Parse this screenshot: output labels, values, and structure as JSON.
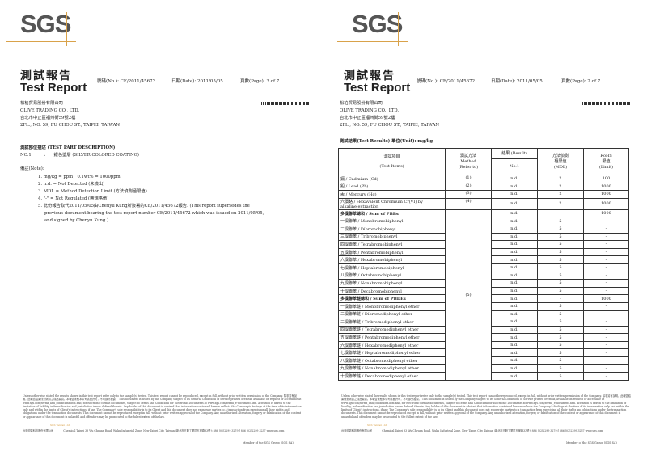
{
  "logo": "SGS",
  "report_title_cn": "測試報告",
  "report_title_en": "Test Report",
  "report_no": "號碼(No.): CE/2011/45672",
  "date": "日期(Date): 2011/05/05",
  "client": {
    "name_cn": "松柏貿易股份有限公司",
    "name_en": "OLIVE TRADING CO., LTD.",
    "addr_cn": "台北市中正區福州街59號2樓",
    "addr_en": "2FL., NO. 59, FU CHOU ST., TAIPEI, TAIWAN"
  },
  "page1": {
    "page": "頁數(Page): 3 of 7",
    "part_heading": "測試部位描述 (TEST PART DESCRIPTION):",
    "part_no": "NO.1",
    "part_sep": ":",
    "part_desc": "銀色塗層 (SILVER COLORED COATING)",
    "note_heading": "備註(Note):",
    "notes": [
      "1. mg/kg = ppm；0.1wt% = 1000ppm",
      "2. n.d. = Not Detected (未檢出)",
      "3. MDL = Method Detection Limit (方法偵測極限值)",
      "4. \"-\" = Not Regulated (無規格值)",
      "5. 此份報告取代2011/05/05由Chenyu Kung所簽署的CE/2011/45672報告. (This report supersedes the",
      "previous document bearing the test report number CE/2011/45672 which was issued on 2011/05/05,",
      "and signed by Chenyu Kung.)"
    ]
  },
  "page2": {
    "page": "頁數(Page): 2 of 7",
    "results_heading": "測試結果(Test Results) 單位(Unit): mg/kg",
    "table": {
      "headers": {
        "item_cn": "測試項目",
        "item_en": "(Test Items)",
        "method_cn": "測試方法",
        "method_en": "Method",
        "method_ref": "(Refer to)",
        "result": "結果 (Result)",
        "result_no": "No.1",
        "mdl_cn": "方法偵測",
        "mdl_cn2": "極限值",
        "mdl_en": "(MDL)",
        "limit_en": "RoHS",
        "limit_cn": "限值",
        "limit_sub": "(Limit)"
      },
      "merged_method": "(5)",
      "rows": [
        {
          "item": "鎘 / Cadmium (Cd)",
          "method": "(1)",
          "result": "n.d.",
          "mdl": "2",
          "limit": "100"
        },
        {
          "item": "鉛 / Lead (Pb)",
          "method": "(2)",
          "result": "n.d.",
          "mdl": "2",
          "limit": "1000"
        },
        {
          "item": "汞 / Mercury (Hg)",
          "method": "(3)",
          "result": "n.d.",
          "mdl": "2",
          "limit": "1000"
        },
        {
          "item": "六價鉻 / Hexavalent Chromium Cr(VI) by",
          "item2": "alkaline extraction",
          "method": "(4)",
          "result": "n.d.",
          "mdl": "2",
          "limit": "1000"
        },
        {
          "item": "多溴聯苯總和 / Sum of PBBs",
          "result": "n.d.",
          "mdl": "-",
          "limit": "1000",
          "sum": true
        },
        {
          "item": "一溴聯苯 / Monobromobiphenyl",
          "result": "n.d.",
          "mdl": "5",
          "limit": "-"
        },
        {
          "item": "二溴聯苯 / Dibromobiphenyl",
          "result": "n.d.",
          "mdl": "5",
          "limit": "-"
        },
        {
          "item": "三溴聯苯 / Tribromobiphenyl",
          "result": "n.d.",
          "mdl": "5",
          "limit": "-"
        },
        {
          "item": "四溴聯苯 / Tetrabromobiphenyl",
          "result": "n.d.",
          "mdl": "5",
          "limit": "-"
        },
        {
          "item": "五溴聯苯 / Pentabromobiphenyl",
          "result": "n.d.",
          "mdl": "5",
          "limit": "-"
        },
        {
          "item": "六溴聯苯 / Hexabromobiphenyl",
          "result": "n.d.",
          "mdl": "5",
          "limit": "-"
        },
        {
          "item": "七溴聯苯 / Heptabromobiphenyl",
          "result": "n.d.",
          "mdl": "5",
          "limit": "-"
        },
        {
          "item": "八溴聯苯 / Octabromobiphenyl",
          "result": "n.d.",
          "mdl": "5",
          "limit": "-"
        },
        {
          "item": "九溴聯苯 / Nonabromobiphenyl",
          "result": "n.d.",
          "mdl": "5",
          "limit": "-"
        },
        {
          "item": "十溴聯苯 / Decabromobiphenyl",
          "result": "n.d.",
          "mdl": "5",
          "limit": "-"
        },
        {
          "item": "多溴聯苯醚總和 / Sum of PBDEs",
          "result": "n.d.",
          "mdl": "-",
          "limit": "1000",
          "sum": true
        },
        {
          "item": "一溴聯苯醚 / Monobromodiphenyl ether",
          "result": "n.d.",
          "mdl": "5",
          "limit": "-"
        },
        {
          "item": "二溴聯苯醚 / Dibromodiphenyl ether",
          "result": "n.d.",
          "mdl": "5",
          "limit": "-"
        },
        {
          "item": "三溴聯苯醚 / Tribromodiphenyl ether",
          "result": "n.d.",
          "mdl": "5",
          "limit": "-"
        },
        {
          "item": "四溴聯苯醚 / Tetrabromodiphenyl ether",
          "result": "n.d.",
          "mdl": "5",
          "limit": "-"
        },
        {
          "item": "五溴聯苯醚 / Pentabromodiphenyl ether",
          "result": "n.d.",
          "mdl": "5",
          "limit": "-"
        },
        {
          "item": "六溴聯苯醚 / Hexabromodiphenyl ether",
          "result": "n.d.",
          "mdl": "5",
          "limit": "-"
        },
        {
          "item": "七溴聯苯醚 / Heptabromodiphenyl ether",
          "result": "n.d.",
          "mdl": "5",
          "limit": "-"
        },
        {
          "item": "八溴聯苯醚 / Octabromodiphenyl ether",
          "result": "n.d.",
          "mdl": "5",
          "limit": "-"
        },
        {
          "item": "九溴聯苯醚 / Nonabromodiphenyl ether",
          "result": "n.d.",
          "mdl": "5",
          "limit": "-"
        },
        {
          "item": "十溴聯苯醚 / Decabromodiphenyl ether",
          "result": "n.d.",
          "mdl": "5",
          "limit": "-"
        }
      ]
    }
  },
  "footer": {
    "disclaimer": "Unless otherwise stated the results shown in this test report refer only to the sample(s) tested. This test report cannot be reproduced, except in full, without prior written permission of the Company. 除非另有說明，此報告結果僅對測試之樣品負責。本報告未經本公司書面許可，不可部分複製。 This document is issued by the Company subject to its General Conditions of Service printed overleaf, available on request or accessible at www.sgs.com/terms_and_conditions.htm and, for electronic format documents, subject to Terms and Conditions for Electronic Documents at www.sgs.com/terms_e-document.htm. Attention is drawn to the limitation of liability, indemnification and jurisdiction issues defined therein. Any holder of this document is advised that information contained hereon reflects the Company's findings at the time of its intervention only and within the limits of Client's instructions, if any. The Company's sole responsibility is to its Client and this document does not exonerate parties to a transaction from exercising all their rights and obligations under the transaction documents. This document cannot be reproduced except in full, without prior written approval of the Company. Any unauthorized alteration, forgery or falsification of the content or appearance of this document is unlawful and offenders may be prosecuted to the fullest extent of the law.",
    "company_cn": "台灣檢驗科技股份有限公司",
    "division": "SGS Taiwan Ltd.",
    "address": "Chemical Taipei   33 Wu Chyuan Road, Wuku Industrial Zone, New Taipei City, Taiwan /新北市五股工業區五權路33號 t 886 (02)2299 3279  f 886 (02)2299 3237  www.sgs.com",
    "member": "Member of the SGS Group (SGS SA)"
  },
  "colors": {
    "logo_gray": "#555555",
    "accent_gold": "#d9a24a"
  }
}
